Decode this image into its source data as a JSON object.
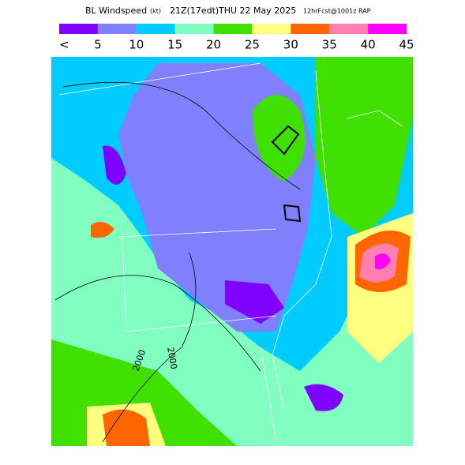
{
  "header": {
    "product": "BL Windspeed",
    "units": "(kt)",
    "valid_time": "21Z(17edt)",
    "date": "THU 22 May 2025",
    "forecast": "12hrFcst@1001z RAP"
  },
  "legend": {
    "colors": [
      "#8000ff",
      "#8080ff",
      "#00ccff",
      "#80ffc0",
      "#40e000",
      "#ffff80",
      "#ff6600",
      "#ff80b0",
      "#ff00ff"
    ],
    "labels": [
      "<",
      "5",
      "10",
      "15",
      "20",
      "25",
      "30",
      "35",
      "40",
      "45"
    ]
  },
  "map": {
    "contour_labels": [
      "2000",
      "2000"
    ]
  }
}
